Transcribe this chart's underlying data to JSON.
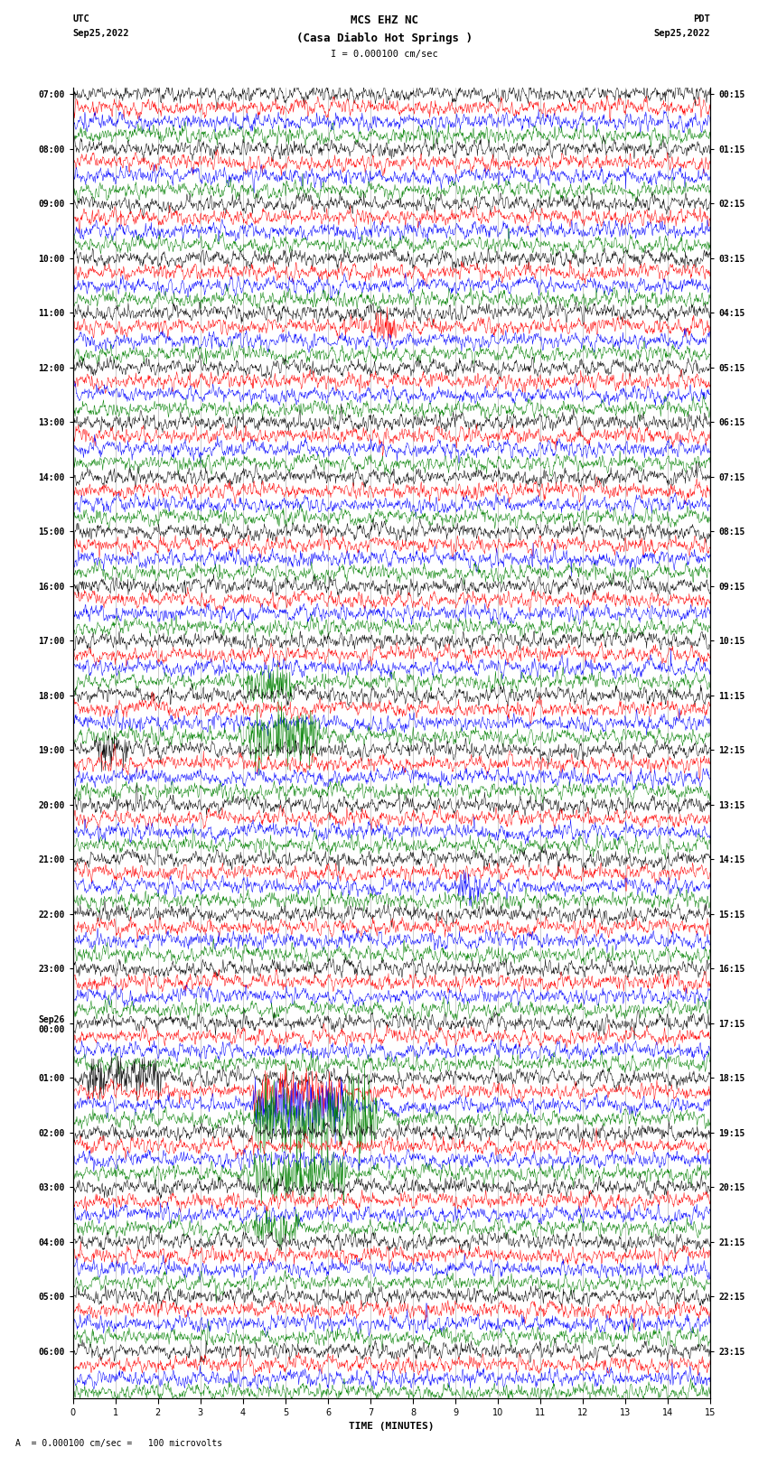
{
  "title_line1": "MCS EHZ NC",
  "title_line2": "(Casa Diablo Hot Springs )",
  "scale_text": "I = 0.000100 cm/sec",
  "utc_label": "UTC",
  "utc_date": "Sep25,2022",
  "pdt_label": "PDT",
  "pdt_date": "Sep25,2022",
  "bottom_label": "TIME (MINUTES)",
  "footnote": "A  = 0.000100 cm/sec =   100 microvolts",
  "xlim": [
    0,
    15
  ],
  "xticks": [
    0,
    1,
    2,
    3,
    4,
    5,
    6,
    7,
    8,
    9,
    10,
    11,
    12,
    13,
    14,
    15
  ],
  "colors": [
    "black",
    "red",
    "blue",
    "green"
  ],
  "left_times": [
    "07:00",
    "08:00",
    "09:00",
    "10:00",
    "11:00",
    "12:00",
    "13:00",
    "14:00",
    "15:00",
    "16:00",
    "17:00",
    "18:00",
    "19:00",
    "20:00",
    "21:00",
    "22:00",
    "23:00",
    "Sep26\n00:00",
    "01:00",
    "02:00",
    "03:00",
    "04:00",
    "05:00",
    "06:00"
  ],
  "right_times": [
    "00:15",
    "01:15",
    "02:15",
    "03:15",
    "04:15",
    "05:15",
    "06:15",
    "07:15",
    "08:15",
    "09:15",
    "10:15",
    "11:15",
    "12:15",
    "13:15",
    "14:15",
    "15:15",
    "16:15",
    "17:15",
    "18:15",
    "19:15",
    "20:15",
    "21:15",
    "22:15",
    "23:15"
  ],
  "num_hours": 24,
  "traces_per_hour": 4,
  "noise_amplitude": 0.25,
  "background_color": "white",
  "grid_color": "#999999",
  "title_fontsize": 9,
  "tick_fontsize": 7,
  "label_fontsize": 8
}
